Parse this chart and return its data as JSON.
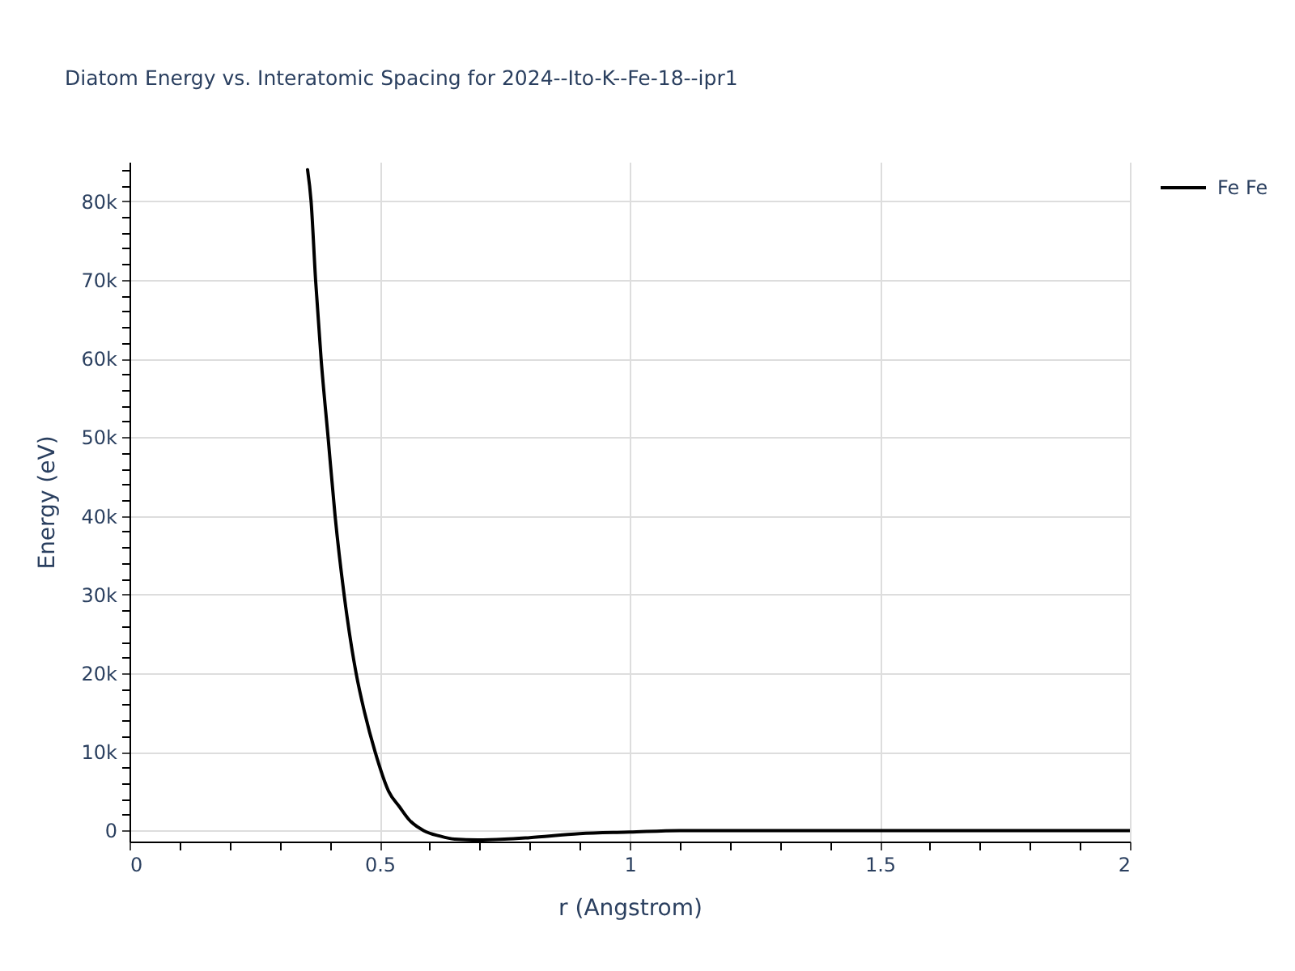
{
  "chart_data": {
    "type": "line",
    "title": "Diatom Energy vs. Interatomic Spacing for 2024--Ito-K--Fe-18--ipr1",
    "xlabel": "r (Angstrom)",
    "ylabel": "Energy (eV)",
    "x": [
      0.356,
      0.363,
      0.372,
      0.383,
      0.397,
      0.411,
      0.429,
      0.453,
      0.47,
      0.491,
      0.518,
      0.54,
      0.56,
      0.588,
      0.62,
      0.65,
      0.696,
      0.75,
      0.8,
      0.9,
      1.0,
      1.1,
      1.2,
      1.5,
      2.0
    ],
    "series": [
      {
        "name": "Fe Fe",
        "color": "#000000",
        "values": [
          84000,
          80000,
          70000,
          60000,
          50000,
          40000,
          30000,
          20000,
          15000,
          10000,
          5000,
          3000,
          1300,
          0,
          -700,
          -1100,
          -1200,
          -1100,
          -900,
          -400,
          -200,
          0,
          0,
          0,
          0
        ]
      }
    ],
    "xlim": [
      0,
      2
    ],
    "ylim": [
      -1400,
      85000
    ],
    "xticks": [
      0,
      {
        "value": 0.1,
        "label": null
      },
      {
        "value": 0.2,
        "label": null
      },
      {
        "value": 0.3,
        "label": null
      },
      {
        "value": 0.4,
        "label": null
      },
      0.5,
      {
        "value": 0.6,
        "label": null
      },
      {
        "value": 0.7,
        "label": null
      },
      {
        "value": 0.8,
        "label": null
      },
      {
        "value": 0.9,
        "label": null
      },
      1,
      {
        "value": 1.1,
        "label": null
      },
      {
        "value": 1.2,
        "label": null
      },
      {
        "value": 1.3,
        "label": null
      },
      {
        "value": 1.4,
        "label": null
      },
      1.5,
      {
        "value": 1.6,
        "label": null
      },
      {
        "value": 1.7,
        "label": null
      },
      {
        "value": 1.8,
        "label": null
      },
      {
        "value": 1.9,
        "label": null
      },
      2
    ],
    "yticks": [
      0,
      {
        "value": 2000,
        "label": null
      },
      {
        "value": 4000,
        "label": null
      },
      {
        "value": 6000,
        "label": null
      },
      {
        "value": 8000,
        "label": null
      },
      {
        "value": 10000,
        "label": "10k"
      },
      {
        "value": 12000,
        "label": null
      },
      {
        "value": 14000,
        "label": null
      },
      {
        "value": 16000,
        "label": null
      },
      {
        "value": 18000,
        "label": null
      },
      {
        "value": 20000,
        "label": "20k"
      },
      {
        "value": 22000,
        "label": null
      },
      {
        "value": 24000,
        "label": null
      },
      {
        "value": 26000,
        "label": null
      },
      {
        "value": 28000,
        "label": null
      },
      {
        "value": 30000,
        "label": "30k"
      },
      {
        "value": 32000,
        "label": null
      },
      {
        "value": 34000,
        "label": null
      },
      {
        "value": 36000,
        "label": null
      },
      {
        "value": 38000,
        "label": null
      },
      {
        "value": 40000,
        "label": "40k"
      },
      {
        "value": 42000,
        "label": null
      },
      {
        "value": 44000,
        "label": null
      },
      {
        "value": 46000,
        "label": null
      },
      {
        "value": 48000,
        "label": null
      },
      {
        "value": 50000,
        "label": "50k"
      },
      {
        "value": 52000,
        "label": null
      },
      {
        "value": 54000,
        "label": null
      },
      {
        "value": 56000,
        "label": null
      },
      {
        "value": 58000,
        "label": null
      },
      {
        "value": 60000,
        "label": "60k"
      },
      {
        "value": 62000,
        "label": null
      },
      {
        "value": 64000,
        "label": null
      },
      {
        "value": 66000,
        "label": null
      },
      {
        "value": 68000,
        "label": null
      },
      {
        "value": 70000,
        "label": "70k"
      },
      {
        "value": 72000,
        "label": null
      },
      {
        "value": 74000,
        "label": null
      },
      {
        "value": 76000,
        "label": null
      },
      {
        "value": 78000,
        "label": null
      },
      {
        "value": 80000,
        "label": "80k"
      },
      {
        "value": 82000,
        "label": null
      },
      {
        "value": 84000,
        "label": null
      }
    ],
    "grid": true,
    "legend": "top right"
  }
}
